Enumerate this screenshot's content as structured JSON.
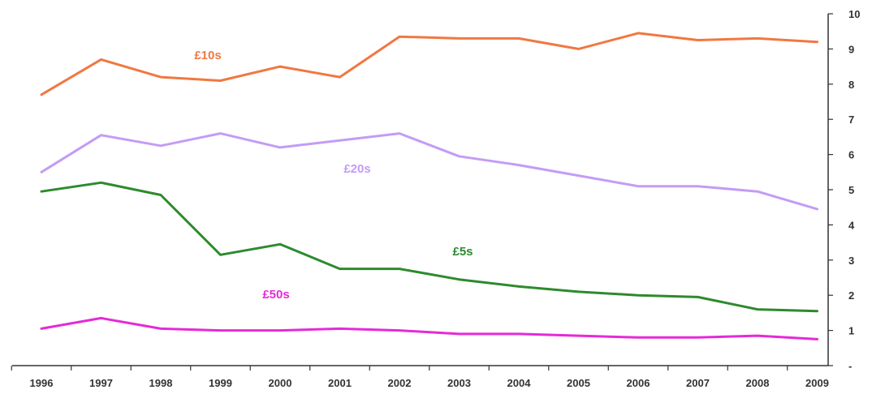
{
  "chart_data": {
    "type": "line",
    "title": "",
    "xlabel": "",
    "ylabel": "",
    "x": [
      "1996",
      "1997",
      "1998",
      "1999",
      "2000",
      "2001",
      "2002",
      "2003",
      "2004",
      "2005",
      "2006",
      "2007",
      "2008",
      "2009"
    ],
    "ylim": [
      0,
      10
    ],
    "y_ticks": [
      "-",
      "1",
      "2",
      "3",
      "4",
      "5",
      "6",
      "7",
      "8",
      "9",
      "10"
    ],
    "y_axis_side": "right",
    "grid": false,
    "legend": "none (series labelled inline)",
    "series": [
      {
        "name": "£10s",
        "color": "#f07841",
        "values": [
          7.7,
          8.7,
          8.2,
          8.1,
          8.5,
          8.2,
          9.35,
          9.3,
          9.3,
          9.0,
          9.45,
          9.25,
          9.3,
          9.2
        ]
      },
      {
        "name": "£20s",
        "color": "#c39cf5",
        "values": [
          5.5,
          6.55,
          6.25,
          6.6,
          6.2,
          6.4,
          6.6,
          5.95,
          5.7,
          5.4,
          5.1,
          5.1,
          4.95,
          4.45
        ]
      },
      {
        "name": "£5s",
        "color": "#2e8a2e",
        "values": [
          4.95,
          5.2,
          4.85,
          3.15,
          3.45,
          2.75,
          2.75,
          2.45,
          2.25,
          2.1,
          2.0,
          1.95,
          1.6,
          1.55
        ]
      },
      {
        "name": "£50s",
        "color": "#e52ad8",
        "values": [
          1.05,
          1.35,
          1.05,
          1.0,
          1.0,
          1.05,
          1.0,
          0.9,
          0.9,
          0.85,
          0.8,
          0.8,
          0.85,
          0.75
        ]
      }
    ]
  }
}
